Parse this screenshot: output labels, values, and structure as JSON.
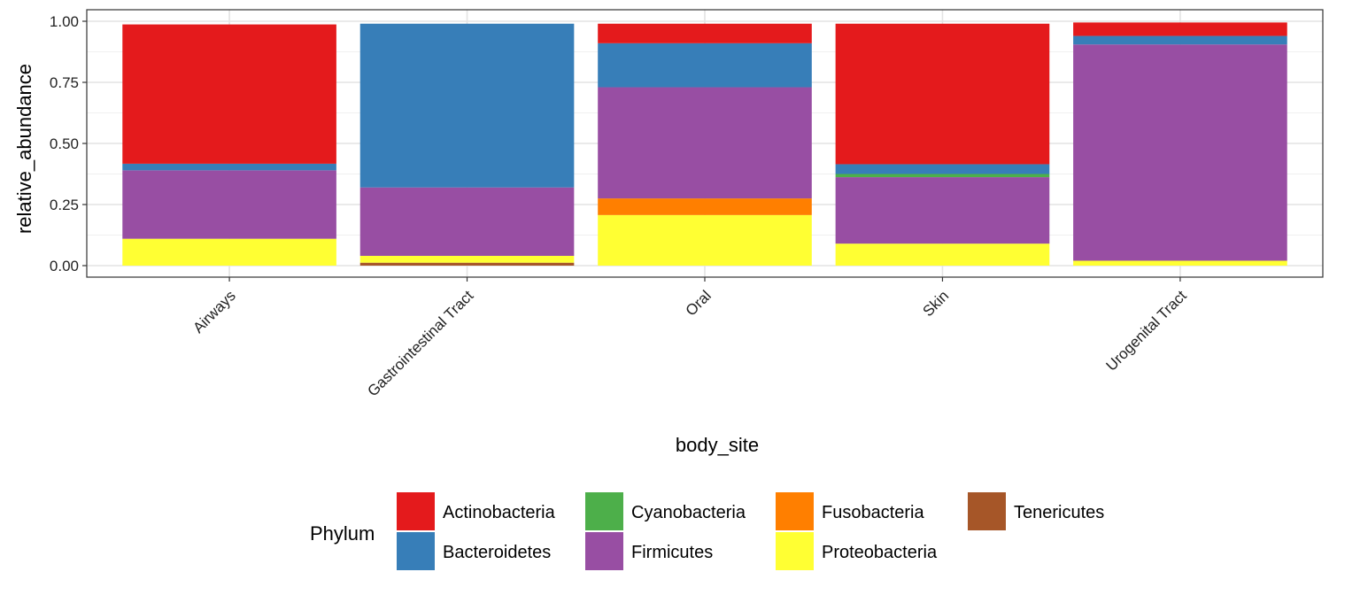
{
  "chart_data": {
    "type": "bar",
    "stacked": true,
    "xlabel": "body_site",
    "ylabel": "relative_abundance",
    "ylim": [
      0,
      1.0
    ],
    "yticks": [
      0.0,
      0.25,
      0.5,
      0.75,
      1.0
    ],
    "ytick_labels": [
      "0.00",
      "0.25",
      "0.50",
      "0.75",
      "1.00"
    ],
    "grid": true,
    "legend_position": "bottom",
    "categories": [
      "Airways",
      "Gastrointestinal Tract",
      "Oral",
      "Skin",
      "Urogenital Tract"
    ],
    "stack_order": [
      "Tenericutes",
      "Proteobacteria",
      "Fusobacteria",
      "Firmicutes",
      "Cyanobacteria",
      "Bacteroidetes",
      "Actinobacteria"
    ],
    "series": [
      {
        "name": "Actinobacteria",
        "color": "#e41a1c",
        "values": [
          0.57,
          0.0,
          0.08,
          0.575,
          0.055
        ]
      },
      {
        "name": "Bacteroidetes",
        "color": "#377eb8",
        "values": [
          0.027,
          0.67,
          0.18,
          0.04,
          0.035
        ]
      },
      {
        "name": "Cyanobacteria",
        "color": "#4daf4a",
        "values": [
          0.0,
          0.0,
          0.0,
          0.013,
          0.0
        ]
      },
      {
        "name": "Firmicutes",
        "color": "#984ea3",
        "values": [
          0.28,
          0.28,
          0.455,
          0.272,
          0.885
        ]
      },
      {
        "name": "Fusobacteria",
        "color": "#ff7f00",
        "values": [
          0.0,
          0.0,
          0.068,
          0.0,
          0.0
        ]
      },
      {
        "name": "Proteobacteria",
        "color": "#ffff33",
        "values": [
          0.11,
          0.028,
          0.207,
          0.09,
          0.02
        ]
      },
      {
        "name": "Tenericutes",
        "color": "#a65628",
        "values": [
          0.0,
          0.012,
          0.0,
          0.0,
          0.0
        ]
      }
    ],
    "legend": {
      "title": "Phylum",
      "entries": [
        "Actinobacteria",
        "Bacteroidetes",
        "Cyanobacteria",
        "Firmicutes",
        "Fusobacteria",
        "Proteobacteria",
        "Tenericutes"
      ]
    }
  }
}
